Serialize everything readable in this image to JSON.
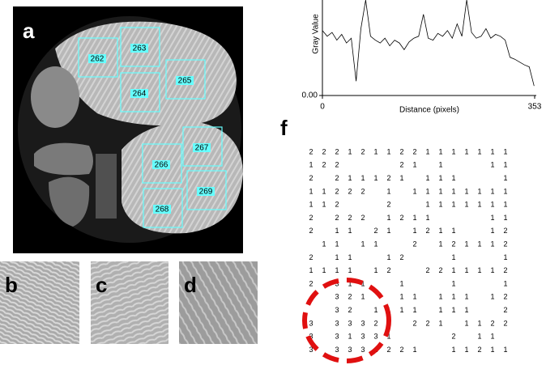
{
  "panels": {
    "a": "a",
    "b": "b",
    "c": "c",
    "d": "d",
    "f": "f"
  },
  "rois": [
    "262",
    "263",
    "264",
    "265",
    "266",
    "267",
    "268",
    "269"
  ],
  "chart_data": {
    "type": "line",
    "xlabel": "Distance (pixels)",
    "ylabel": "Gray Value",
    "xlim": [
      0,
      353
    ],
    "ylim": [
      0,
      1
    ],
    "xticks": [
      0,
      353
    ],
    "yticks": [
      {
        "value": 0,
        "label": "0.00"
      }
    ],
    "x": [
      0,
      8,
      16,
      24,
      32,
      40,
      48,
      56,
      64,
      72,
      80,
      88,
      96,
      104,
      112,
      120,
      128,
      136,
      144,
      152,
      160,
      168,
      176,
      184,
      192,
      200,
      208,
      216,
      224,
      232,
      240,
      248,
      256,
      264,
      272,
      280,
      288,
      296,
      304,
      312,
      320,
      328,
      336,
      344,
      352
    ],
    "values": [
      0.68,
      0.62,
      0.66,
      0.58,
      0.64,
      0.55,
      0.6,
      0.15,
      0.7,
      1.0,
      0.62,
      0.58,
      0.55,
      0.6,
      0.52,
      0.58,
      0.55,
      0.48,
      0.56,
      0.6,
      0.62,
      0.85,
      0.6,
      0.58,
      0.65,
      0.62,
      0.68,
      0.6,
      0.75,
      0.62,
      1.0,
      0.66,
      0.6,
      0.62,
      0.7,
      0.6,
      0.64,
      0.62,
      0.58,
      0.4,
      0.38,
      0.35,
      0.32,
      0.3,
      0.1
    ],
    "color": "#000000"
  },
  "grid": {
    "rows": [
      [
        2,
        2,
        2,
        1,
        2,
        1,
        1,
        2,
        2,
        1,
        1,
        1,
        1,
        1,
        1,
        1
      ],
      [
        1,
        2,
        2,
        null,
        null,
        null,
        null,
        2,
        1,
        null,
        1,
        null,
        null,
        null,
        1,
        1
      ],
      [
        2,
        null,
        2,
        1,
        1,
        1,
        2,
        1,
        null,
        1,
        1,
        1,
        null,
        null,
        null,
        1
      ],
      [
        1,
        1,
        2,
        2,
        2,
        null,
        1,
        null,
        1,
        1,
        1,
        1,
        1,
        1,
        1,
        1
      ],
      [
        1,
        1,
        2,
        null,
        null,
        null,
        2,
        null,
        null,
        1,
        1,
        1,
        1,
        1,
        1,
        1
      ],
      [
        2,
        null,
        2,
        2,
        2,
        null,
        1,
        2,
        1,
        1,
        null,
        null,
        null,
        null,
        1,
        1
      ],
      [
        2,
        null,
        1,
        1,
        null,
        2,
        1,
        null,
        1,
        2,
        1,
        1,
        null,
        null,
        1,
        2
      ],
      [
        null,
        1,
        1,
        null,
        1,
        1,
        null,
        null,
        2,
        null,
        1,
        2,
        1,
        1,
        1,
        2
      ],
      [
        2,
        null,
        1,
        1,
        null,
        null,
        1,
        2,
        null,
        null,
        null,
        1,
        null,
        null,
        null,
        1
      ],
      [
        1,
        1,
        1,
        1,
        null,
        1,
        2,
        null,
        null,
        2,
        2,
        1,
        1,
        1,
        1,
        2
      ],
      [
        2,
        null,
        3,
        1,
        1,
        null,
        null,
        1,
        null,
        null,
        null,
        1,
        null,
        null,
        null,
        1
      ],
      [
        null,
        null,
        3,
        2,
        1,
        null,
        null,
        1,
        1,
        null,
        1,
        1,
        1,
        null,
        1,
        2
      ],
      [
        null,
        null,
        3,
        2,
        null,
        1,
        1,
        1,
        1,
        null,
        1,
        1,
        1,
        null,
        null,
        2
      ],
      [
        3,
        null,
        3,
        3,
        3,
        2,
        1,
        null,
        2,
        2,
        1,
        null,
        1,
        1,
        2,
        2
      ],
      [
        3,
        null,
        3,
        1,
        3,
        3,
        1,
        null,
        null,
        null,
        null,
        2,
        null,
        1,
        1,
        null
      ],
      [
        3,
        null,
        3,
        3,
        3,
        1,
        2,
        2,
        1,
        null,
        null,
        1,
        1,
        2,
        1,
        1
      ]
    ]
  }
}
